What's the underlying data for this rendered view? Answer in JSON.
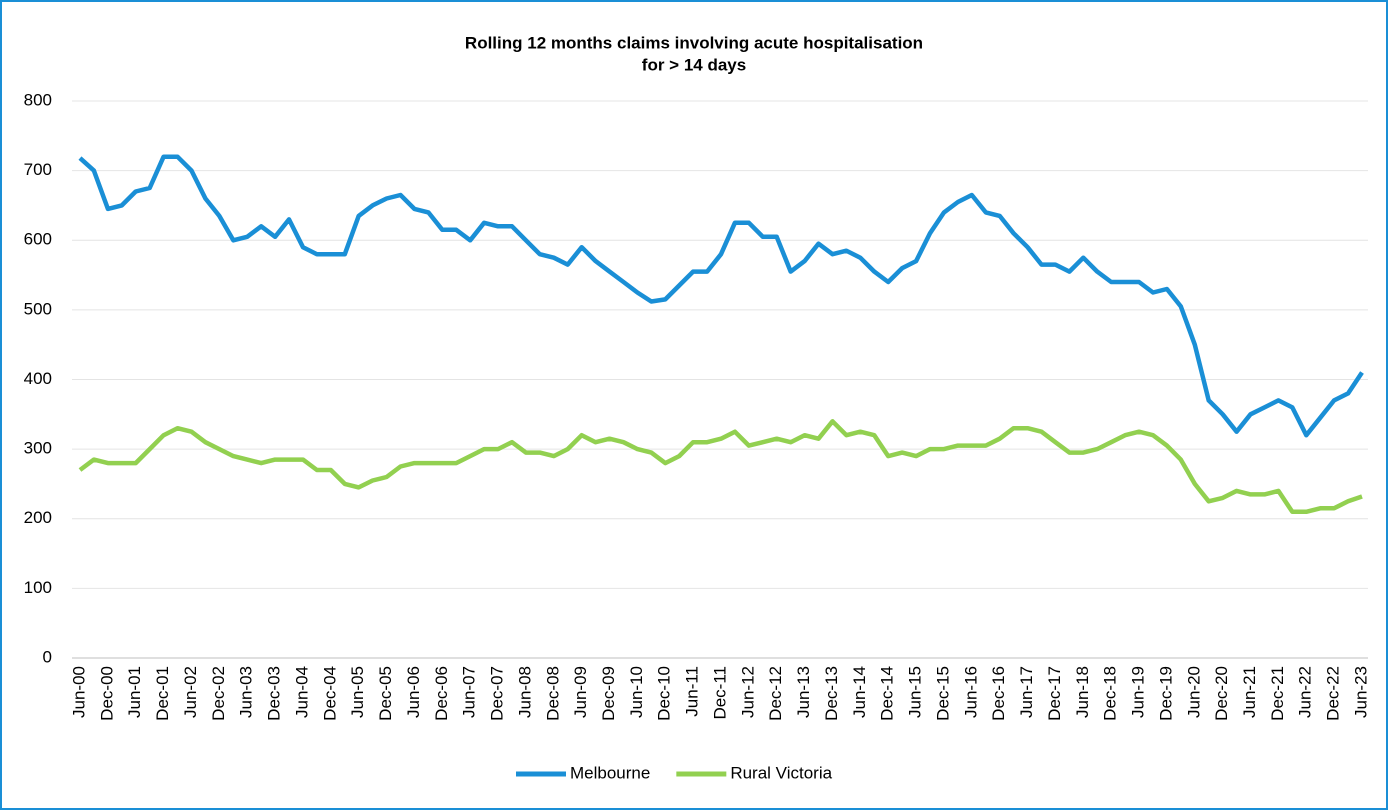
{
  "chart_data": {
    "type": "line",
    "title": [
      "Rolling 12 months claims involving acute hospitalisation",
      "for > 14 days"
    ],
    "categories": [
      "Jun-00",
      null,
      "Dec-00",
      null,
      "Jun-01",
      null,
      "Dec-01",
      null,
      "Jun-02",
      null,
      "Dec-02",
      null,
      "Jun-03",
      null,
      "Dec-03",
      null,
      "Jun-04",
      null,
      "Dec-04",
      null,
      "Jun-05",
      null,
      "Dec-05",
      null,
      "Jun-06",
      null,
      "Dec-06",
      null,
      "Jun-07",
      null,
      "Dec-07",
      null,
      "Jun-08",
      null,
      "Dec-08",
      null,
      "Jun-09",
      null,
      "Dec-09",
      null,
      "Jun-10",
      null,
      "Dec-10",
      null,
      "Jun-11",
      null,
      "Dec-11",
      null,
      "Jun-12",
      null,
      "Dec-12",
      null,
      "Jun-13",
      null,
      "Dec-13",
      null,
      "Jun-14",
      null,
      "Dec-14",
      null,
      "Jun-15",
      null,
      "Dec-15",
      null,
      "Jun-16",
      null,
      "Dec-16",
      null,
      "Jun-17",
      null,
      "Dec-17",
      null,
      "Jun-18",
      null,
      "Dec-18",
      null,
      "Jun-19",
      null,
      "Dec-19",
      null,
      "Jun-20",
      null,
      "Dec-20",
      null,
      "Jun-21",
      null,
      "Dec-21",
      null,
      "Jun-22",
      null,
      "Dec-22",
      null,
      "Jun-23"
    ],
    "series": [
      {
        "name": "Melbourne",
        "color": "#1a8fd6",
        "values": [
          718,
          700,
          645,
          650,
          670,
          675,
          720,
          720,
          700,
          660,
          635,
          600,
          605,
          620,
          605,
          630,
          590,
          580,
          580,
          580,
          635,
          650,
          660,
          665,
          645,
          640,
          615,
          615,
          600,
          625,
          620,
          620,
          600,
          580,
          575,
          565,
          590,
          570,
          555,
          540,
          525,
          512,
          515,
          535,
          555,
          555,
          580,
          625,
          625,
          605,
          605,
          555,
          570,
          595,
          580,
          585,
          575,
          555,
          540,
          560,
          570,
          610,
          640,
          655,
          665,
          640,
          635,
          610,
          590,
          565,
          565,
          555,
          575,
          555,
          540,
          540,
          540,
          525,
          530,
          505,
          450,
          370,
          350,
          325,
          350,
          360,
          370,
          360,
          320,
          345,
          370,
          380,
          410
        ]
      },
      {
        "name": "Rural Victoria",
        "color": "#92d050",
        "values": [
          270,
          285,
          280,
          280,
          280,
          300,
          320,
          330,
          325,
          310,
          300,
          290,
          285,
          280,
          285,
          285,
          285,
          270,
          270,
          250,
          245,
          255,
          260,
          275,
          280,
          280,
          280,
          280,
          290,
          300,
          300,
          310,
          295,
          295,
          290,
          300,
          320,
          310,
          315,
          310,
          300,
          295,
          280,
          290,
          310,
          310,
          315,
          325,
          305,
          310,
          315,
          310,
          320,
          315,
          340,
          320,
          325,
          320,
          290,
          295,
          290,
          300,
          300,
          305,
          305,
          305,
          315,
          330,
          330,
          325,
          310,
          295,
          295,
          300,
          310,
          320,
          325,
          320,
          305,
          285,
          250,
          225,
          230,
          240,
          235,
          235,
          240,
          210,
          210,
          215,
          215,
          225,
          232
        ]
      }
    ],
    "ylim": [
      0,
      800
    ],
    "yticks": [
      0,
      100,
      200,
      300,
      400,
      500,
      600,
      700,
      800
    ],
    "grid": true,
    "legend": "bottom"
  }
}
